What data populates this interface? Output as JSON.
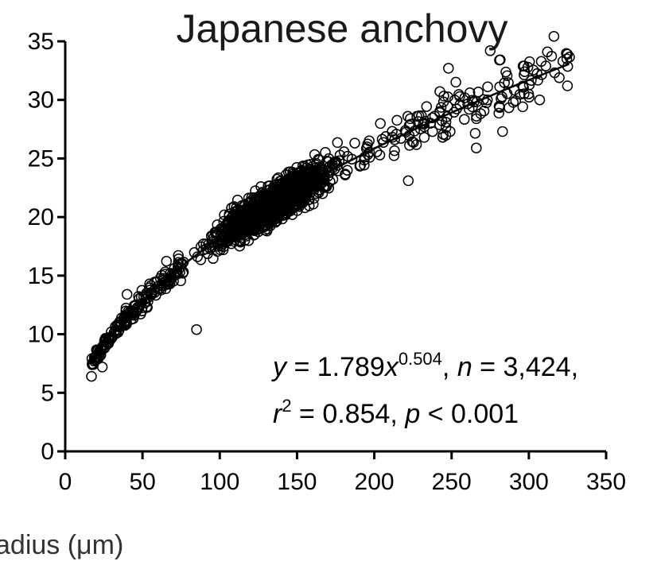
{
  "chart_data": {
    "type": "scatter",
    "title": "Japanese anchovy",
    "xlabel": "adius (μm)",
    "ylabel": "",
    "xlim": [
      0,
      350
    ],
    "ylim": [
      0,
      35
    ],
    "x_ticks": [
      "0",
      "50",
      "100",
      "150",
      "200",
      "250",
      "300",
      "350"
    ],
    "y_ticks": [
      "0",
      "5",
      "10",
      "15",
      "20",
      "25",
      "30",
      "35"
    ],
    "grid": false,
    "fit": {
      "a": 1.789,
      "b": 0.504,
      "x_range": [
        18,
        326
      ]
    },
    "n_points": 3424,
    "point_cloud": {
      "x_range": [
        17,
        327
      ],
      "spread_low": 0.86,
      "spread_high": 1.12,
      "outliers": [
        {
          "x": 85,
          "y": 10.4
        },
        {
          "x": 275,
          "y": 34.2
        },
        {
          "x": 281,
          "y": 33.4
        },
        {
          "x": 297,
          "y": 32.9
        },
        {
          "x": 248,
          "y": 32.7
        },
        {
          "x": 311,
          "y": 32.9
        },
        {
          "x": 322,
          "y": 33.3
        },
        {
          "x": 325,
          "y": 31.2
        },
        {
          "x": 307,
          "y": 30.0
        },
        {
          "x": 283,
          "y": 27.3
        },
        {
          "x": 266,
          "y": 25.9
        },
        {
          "x": 222,
          "y": 23.1
        },
        {
          "x": 17,
          "y": 6.4
        },
        {
          "x": 24,
          "y": 7.2
        },
        {
          "x": 40,
          "y": 13.4
        }
      ]
    },
    "annotation": {
      "line1": {
        "y": "y",
        "eq": " = 1.789",
        "x": "x",
        "exp": "0.504",
        "sep": ", ",
        "n": "n",
        "n_val": " = 3,424,"
      },
      "line2": {
        "r": "r",
        "exp": "2",
        "r_val": " = 0.854, ",
        "p": "p",
        "p_val": " < 0.001"
      }
    }
  }
}
